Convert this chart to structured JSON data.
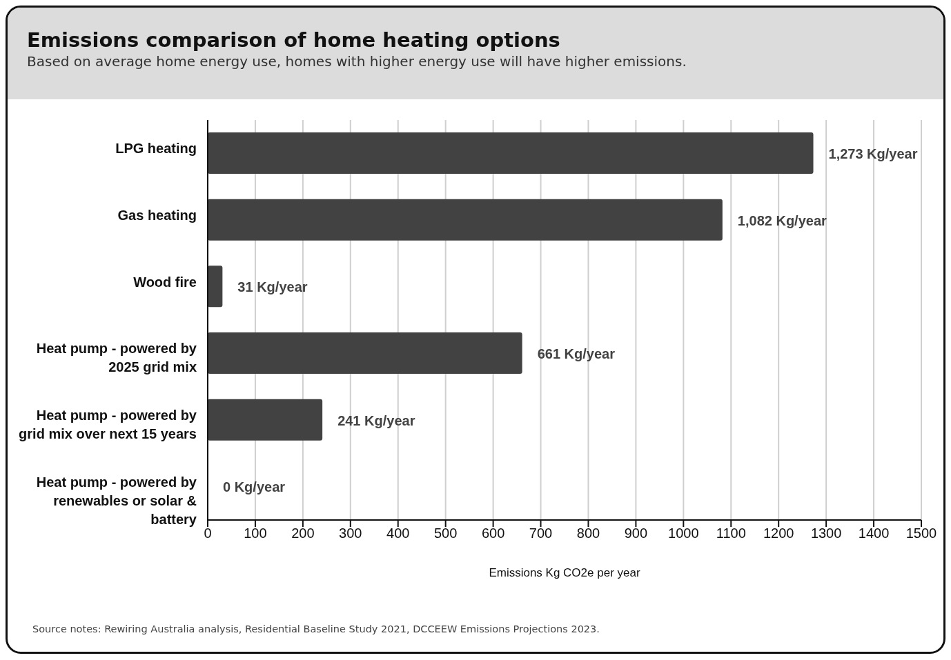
{
  "chart_data": {
    "type": "bar",
    "orientation": "horizontal",
    "title": "Emissions comparison of home heating options",
    "subtitle": "Based on average home energy use, homes with higher energy use will have higher emissions.",
    "categories": [
      "LPG heating",
      "Gas heating",
      "Wood fire",
      "Heat pump - powered by 2025 grid mix",
      "Heat pump - powered by grid mix over next 15 years",
      "Heat pump - powered by renewables or solar & battery"
    ],
    "values": [
      1273,
      1082,
      31,
      661,
      241,
      0
    ],
    "value_labels": [
      "1,273 Kg/year",
      "1,082 Kg/year",
      "31 Kg/year",
      "661 Kg/year",
      "241 Kg/year",
      "0 Kg/year"
    ],
    "color": "#424242",
    "xlabel": "Emissions Kg CO2e per year",
    "xlim": [
      0,
      1500
    ],
    "xticks": [
      0,
      100,
      200,
      300,
      400,
      500,
      600,
      700,
      800,
      900,
      1000,
      1100,
      1200,
      1300,
      1400,
      1500
    ],
    "grid": "x",
    "annotations": [
      "Source notes: Rewiring Australia analysis, Residential Baseline Study 2021, DCCEEW Emissions Projections 2023."
    ]
  }
}
